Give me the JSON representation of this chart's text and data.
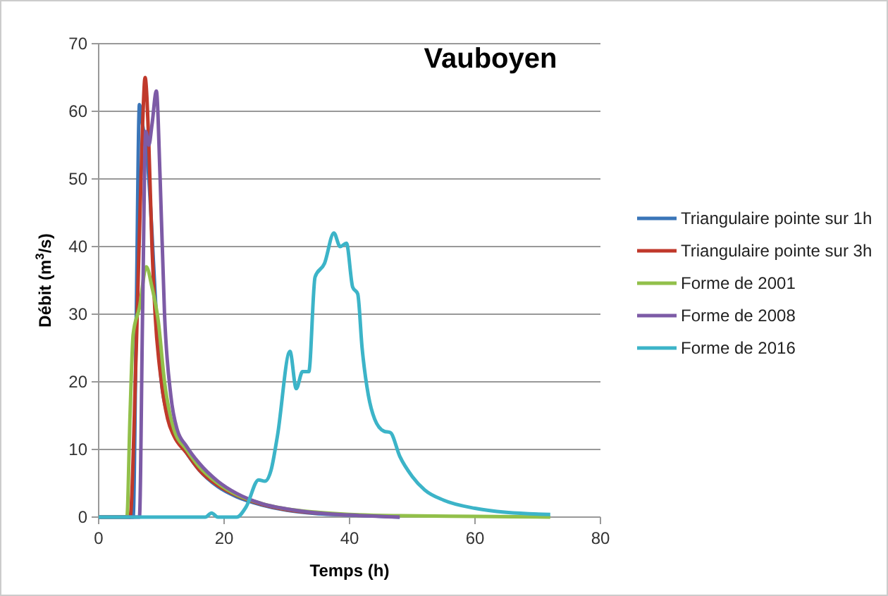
{
  "chart_data": {
    "type": "line",
    "title": "Vauboyen",
    "xlabel": "Temps (h)",
    "ylabel": "Débit (m$^{3}$/s)",
    "xlim": [
      0,
      80
    ],
    "xticks": [
      0,
      20,
      40,
      60,
      80
    ],
    "ylim": [
      0,
      70
    ],
    "yticks": [
      0,
      10,
      20,
      30,
      40,
      50,
      60,
      70
    ],
    "grid": "y",
    "legend": "right",
    "marker": "none",
    "line_style": "solid",
    "series": [
      {
        "name": "Triangulaire pointe sur 1h",
        "color": "#3a75b8",
        "x": [
          0,
          5.5,
          6,
          6.5,
          7,
          7.5,
          8,
          8.5,
          9,
          10,
          11,
          12,
          14,
          16,
          19,
          22,
          26,
          30,
          35,
          40,
          48
        ],
        "values": [
          0,
          0,
          30,
          61,
          58,
          55,
          50,
          42,
          33,
          20,
          15,
          12.5,
          9.5,
          7,
          4.5,
          3,
          1.8,
          1,
          0.5,
          0.3,
          0
        ]
      },
      {
        "name": "Triangulaire pointe sur 3h",
        "color": "#c0392b",
        "x": [
          0,
          5,
          6,
          7,
          7.4,
          8,
          8.5,
          9,
          10,
          11,
          12,
          14,
          16,
          19,
          22,
          26,
          30,
          35
        ],
        "values": [
          0,
          0,
          25,
          58,
          65,
          55,
          40,
          30,
          20,
          14.5,
          12,
          9.5,
          7,
          4.7,
          3.2,
          1.9,
          1.1,
          0.6
        ]
      },
      {
        "name": "Forme de 2001",
        "color": "#92c04a",
        "x": [
          0,
          4.5,
          5,
          5.5,
          6.5,
          7.6,
          8.5,
          9.5,
          10.5,
          12,
          14,
          16,
          19,
          22,
          26,
          30,
          35,
          40,
          48,
          60,
          72
        ],
        "values": [
          0,
          0,
          15,
          27,
          31,
          37,
          34,
          29,
          20,
          13,
          10,
          7.5,
          5,
          3.3,
          2,
          1.2,
          0.7,
          0.4,
          0.2,
          0.1,
          0
        ]
      },
      {
        "name": "Forme de 2008",
        "color": "#7d5ba6",
        "x": [
          0,
          6.5,
          7,
          7.5,
          8,
          8.5,
          9.2,
          9.8,
          10.5,
          11.5,
          12.5,
          14,
          16,
          19,
          22,
          26,
          30,
          35,
          40,
          48
        ],
        "values": [
          0,
          0,
          30,
          57,
          55,
          58,
          63,
          50,
          30,
          18,
          13,
          10.5,
          8,
          5.3,
          3.5,
          2,
          1.2,
          0.6,
          0.3,
          0
        ]
      },
      {
        "name": "Forme de 2016",
        "color": "#3cb4c8",
        "x": [
          0,
          17,
          18,
          19,
          22,
          23.5,
          25.5,
          26.5,
          27.5,
          28.5,
          30.5,
          31.5,
          32.5,
          33.5,
          34.5,
          36,
          37.5,
          38.5,
          39.5,
          40.5,
          41.3,
          42,
          43,
          44,
          45.5,
          46.5,
          48,
          50,
          52,
          55,
          60,
          65,
          72
        ],
        "values": [
          0,
          0,
          0.6,
          0,
          0,
          1.5,
          5.5,
          5.3,
          7,
          12,
          24.5,
          19,
          21.5,
          21.5,
          35.5,
          37.5,
          42,
          40,
          40.5,
          34,
          33,
          25,
          18,
          14.5,
          12.7,
          12.5,
          9,
          6,
          4,
          2.5,
          1.3,
          0.7,
          0.4
        ]
      }
    ]
  }
}
